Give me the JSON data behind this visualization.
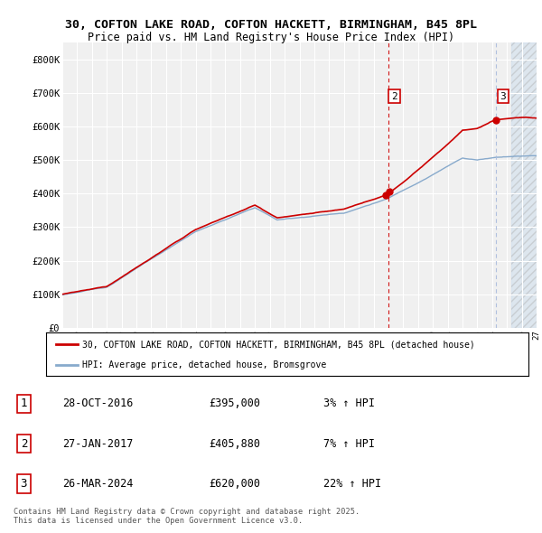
{
  "title1": "30, COFTON LAKE ROAD, COFTON HACKETT, BIRMINGHAM, B45 8PL",
  "title2": "Price paid vs. HM Land Registry's House Price Index (HPI)",
  "ylim": [
    0,
    850000
  ],
  "yticks": [
    0,
    100000,
    200000,
    300000,
    400000,
    500000,
    600000,
    700000,
    800000
  ],
  "ytick_labels": [
    "£0",
    "£100K",
    "£200K",
    "£300K",
    "£400K",
    "£500K",
    "£600K",
    "£700K",
    "£800K"
  ],
  "background_color": "#ffffff",
  "plot_bg_color": "#f0f0f0",
  "grid_color": "#ffffff",
  "line_color_red": "#cc0000",
  "line_color_blue": "#88aacc",
  "vline_color_red": "#cc0000",
  "vline_color_blue": "#aabbdd",
  "hatch_color": "#ccddee",
  "sale1_date": 2016.83,
  "sale1_price": 395000,
  "sale2_date": 2017.08,
  "sale2_price": 405880,
  "sale3_date": 2024.23,
  "sale3_price": 620000,
  "legend_label1": "30, COFTON LAKE ROAD, COFTON HACKETT, BIRMINGHAM, B45 8PL (detached house)",
  "legend_label2": "HPI: Average price, detached house, Bromsgrove",
  "table_rows": [
    [
      "1",
      "28-OCT-2016",
      "£395,000",
      "3% ↑ HPI"
    ],
    [
      "2",
      "27-JAN-2017",
      "£405,880",
      "7% ↑ HPI"
    ],
    [
      "3",
      "26-MAR-2024",
      "£620,000",
      "22% ↑ HPI"
    ]
  ],
  "footnote": "Contains HM Land Registry data © Crown copyright and database right 2025.\nThis data is licensed under the Open Government Licence v3.0.",
  "xstart": 1995,
  "xend": 2027
}
